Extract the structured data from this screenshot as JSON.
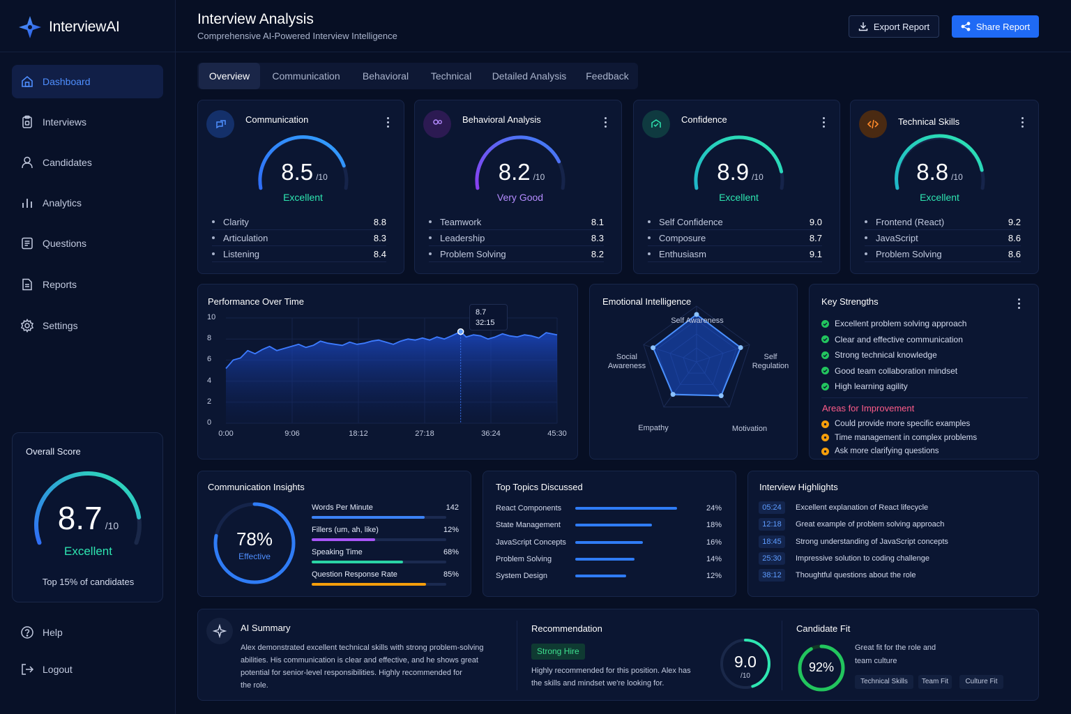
{
  "app": {
    "name": "InterviewAI"
  },
  "sidebar": {
    "items": [
      {
        "label": "Dashboard",
        "icon": "home-icon",
        "active": true
      },
      {
        "label": "Interviews",
        "icon": "clipboard-icon"
      },
      {
        "label": "Candidates",
        "icon": "user-icon"
      },
      {
        "label": "Analytics",
        "icon": "bar-chart-icon"
      },
      {
        "label": "Questions",
        "icon": "list-icon"
      },
      {
        "label": "Reports",
        "icon": "document-icon"
      },
      {
        "label": "Settings",
        "icon": "gear-icon"
      }
    ],
    "overall": {
      "title": "Overall Score",
      "score": "8.7",
      "max": "/10",
      "score_fraction": 0.87,
      "label": "Excellent",
      "subtitle": "Top 15% of candidates"
    },
    "help": "Help",
    "logout": "Logout"
  },
  "header": {
    "title": "Interview Analysis",
    "subtitle": "Comprehensive AI-Powered Interview Intelligence",
    "export_label": "Export Report",
    "share_label": "Share Report"
  },
  "tabs": [
    "Overview",
    "Communication",
    "Behavioral",
    "Technical",
    "Detailed Analysis",
    "Feedback"
  ],
  "score_cards": [
    {
      "title": "Communication",
      "score": "8.5",
      "max": "/10",
      "label": "Excellent",
      "label_color": "#2ee6b1",
      "metrics": [
        {
          "name": "Clarity",
          "value": "8.8"
        },
        {
          "name": "Articulation",
          "value": "8.3"
        },
        {
          "name": "Listening",
          "value": "8.4"
        }
      ]
    },
    {
      "title": "Behavioral Analysis",
      "score": "8.2",
      "max": "/10",
      "label": "Very Good",
      "label_color": "#b58cff",
      "metrics": [
        {
          "name": "Teamwork",
          "value": "8.1"
        },
        {
          "name": "Leadership",
          "value": "8.3"
        },
        {
          "name": "Problem Solving",
          "value": "8.2"
        }
      ]
    },
    {
      "title": "Confidence",
      "score": "8.9",
      "max": "/10",
      "label": "Excellent",
      "label_color": "#2ee6b1",
      "metrics": [
        {
          "name": "Self Confidence",
          "value": "9.0"
        },
        {
          "name": "Composure",
          "value": "8.7"
        },
        {
          "name": "Enthusiasm",
          "value": "9.1"
        }
      ]
    },
    {
      "title": "Technical Skills",
      "score": "8.8",
      "max": "/10",
      "label": "Excellent",
      "label_color": "#2ee6b1",
      "metrics": [
        {
          "name": "Frontend (React)",
          "value": "9.2"
        },
        {
          "name": "JavaScript",
          "value": "8.6"
        },
        {
          "name": "Problem Solving",
          "value": "8.6"
        }
      ]
    }
  ],
  "performance": {
    "title": "Performance Over Time",
    "tooltip": {
      "value": "8.7",
      "time": "32:15"
    }
  },
  "chart_data": {
    "type": "area",
    "ylim": [
      0,
      10
    ],
    "yticks": [
      "10",
      "8",
      "6",
      "4",
      "2",
      "0"
    ],
    "xticks": [
      "0:00",
      "9:06",
      "18:12",
      "27:18",
      "36:24",
      "45:30"
    ],
    "xlim_minutes": [
      0,
      45.5
    ],
    "x": [
      0,
      1,
      2,
      3,
      4,
      5,
      6,
      7,
      8,
      9,
      10,
      11,
      12,
      13,
      14,
      15,
      16,
      17,
      18,
      19,
      20,
      21,
      22,
      23,
      24,
      25,
      26,
      27,
      28,
      29,
      30,
      31,
      32.25,
      33,
      34,
      35,
      36,
      37,
      38,
      39,
      40,
      41,
      42,
      43,
      44,
      45.5
    ],
    "values": [
      5.2,
      6.0,
      6.2,
      6.9,
      6.6,
      7.0,
      7.3,
      6.9,
      7.1,
      7.3,
      7.5,
      7.2,
      7.4,
      7.8,
      7.6,
      7.5,
      7.4,
      7.7,
      7.5,
      7.6,
      7.8,
      7.9,
      7.7,
      7.5,
      7.8,
      8.0,
      7.9,
      8.1,
      7.9,
      8.2,
      8.0,
      8.3,
      8.7,
      8.2,
      8.4,
      8.3,
      8.0,
      8.2,
      8.5,
      8.3,
      8.2,
      8.4,
      8.3,
      8.1,
      8.6,
      8.4
    ]
  },
  "emotional": {
    "title": "Emotional Intelligence",
    "axes": [
      "Self Awareness",
      "Self Regulation",
      "Motivation",
      "Empathy",
      "Social Awareness"
    ],
    "axes_display": [
      "Self Awareness",
      "Self\nRegulation",
      "Motivation",
      "Empathy",
      "Social\nAwareness"
    ],
    "values": [
      0.85,
      0.83,
      0.75,
      0.72,
      0.82
    ]
  },
  "strengths": {
    "title": "Key Strengths",
    "items": [
      "Excellent problem solving approach",
      "Clear and effective communication",
      "Strong technical knowledge",
      "Good team collaboration mindset",
      "High learning agility"
    ],
    "improvement_title": "Areas for Improvement",
    "improvements": [
      "Could provide more specific examples",
      "Time management in complex problems",
      "Ask more clarifying questions"
    ]
  },
  "comm_insights": {
    "title": "Communication Insights",
    "effective_pct": "78%",
    "effective_fraction": 0.78,
    "effective_label": "Effective",
    "rows": [
      {
        "name": "Words Per Minute",
        "value": "142",
        "fraction": 0.84,
        "color": "#3b82f6"
      },
      {
        "name": "Fillers (um, ah, like)",
        "value": "12%",
        "fraction": 0.47,
        "color": "#a855f7"
      },
      {
        "name": "Speaking Time",
        "value": "68%",
        "fraction": 0.68,
        "color": "#2ad4a5"
      },
      {
        "name": "Question Response Rate",
        "value": "85%",
        "fraction": 0.85,
        "color": "#f59e0b"
      }
    ]
  },
  "topics": {
    "title": "Top Topics Discussed",
    "items": [
      {
        "name": "React Components",
        "pct": "24%",
        "fraction": 0.24
      },
      {
        "name": "State Management",
        "pct": "18%",
        "fraction": 0.18
      },
      {
        "name": "JavaScript Concepts",
        "pct": "16%",
        "fraction": 0.16
      },
      {
        "name": "Problem Solving",
        "pct": "14%",
        "fraction": 0.14
      },
      {
        "name": "System Design",
        "pct": "12%",
        "fraction": 0.12
      }
    ]
  },
  "highlights": {
    "title": "Interview Highlights",
    "items": [
      {
        "time": "05:24",
        "text": "Excellent explanation of React lifecycle"
      },
      {
        "time": "12:18",
        "text": "Great example of problem solving approach"
      },
      {
        "time": "18:45",
        "text": "Strong understanding of JavaScript concepts"
      },
      {
        "time": "25:30",
        "text": "Impressive solution to coding challenge"
      },
      {
        "time": "38:12",
        "text": "Thoughtful questions about the role"
      }
    ]
  },
  "summary": {
    "title": "AI Summary",
    "lines": [
      "Alex demonstrated excellent technical skills with strong problem-solving",
      "abilities. His communication is clear and effective, and he shows great",
      "potential for senior-level responsibilities. Highly recommended for",
      "the role."
    ]
  },
  "recommendation": {
    "title": "Recommendation",
    "badge": "Strong Hire",
    "lines": [
      "Highly recommended for this position. Alex has",
      "the skills and mindset we're looking for."
    ],
    "score": "9.0",
    "max": "/10",
    "fraction": 0.9
  },
  "fit": {
    "title": "Candidate Fit",
    "pct": "92%",
    "fraction": 0.92,
    "lines": [
      "Great fit for the role and",
      "team culture"
    ],
    "chips": [
      "Technical Skills",
      "Team Fit",
      "Culture Fit"
    ]
  },
  "colors": {
    "accent": "#1f6af5",
    "excellent": "#2ee6b1",
    "very_good": "#b58cff",
    "improve": "#ff5c8a",
    "check": "#22c55e",
    "warn": "#f59e0b"
  }
}
